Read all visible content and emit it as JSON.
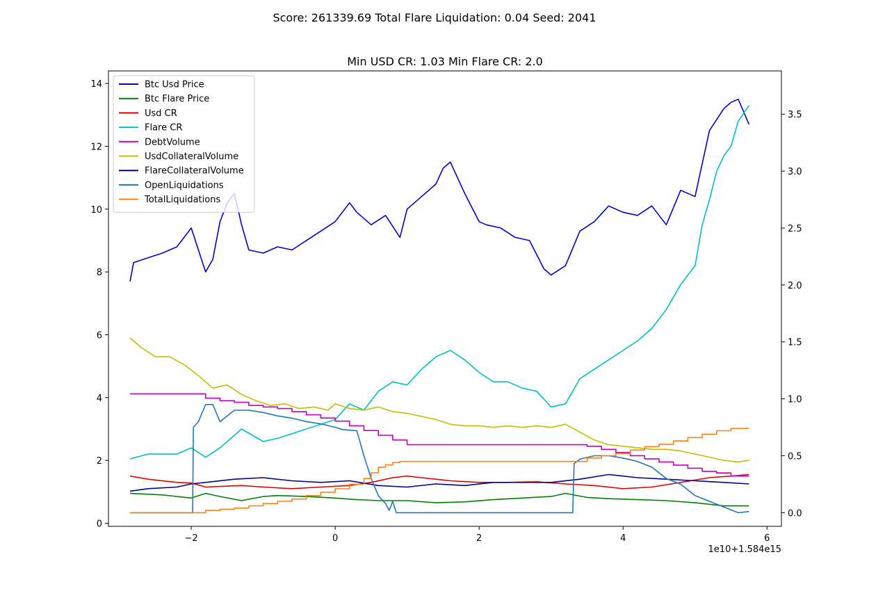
{
  "figure": {
    "suptitle": "Score: 261339.69 Total Flare Liquidation: 0.04 Seed: 2041",
    "title": "Min USD CR: 1.03 Min Flare CR: 2.0",
    "offset_label": "1e10+1.584e15"
  },
  "chart_data": {
    "type": "line",
    "title": "Min USD CR: 1.03 Min Flare CR: 2.0",
    "xlabel": "",
    "ylabel": "",
    "xlim": [
      -3.15,
      6.2
    ],
    "ylim_left": [
      -0.1,
      14.4
    ],
    "ylim_right": [
      -0.12,
      3.88
    ],
    "xticks": [
      -2,
      0,
      2,
      4,
      6
    ],
    "xtick_labels": [
      "−2",
      "0",
      "2",
      "4",
      "6"
    ],
    "yticks_left": [
      0,
      2,
      4,
      6,
      8,
      10,
      12,
      14
    ],
    "ytick_labels_left": [
      "0",
      "2",
      "4",
      "6",
      "8",
      "10",
      "12",
      "14"
    ],
    "yticks_right": [
      0.0,
      0.5,
      1.0,
      1.5,
      2.0,
      2.5,
      3.0,
      3.5
    ],
    "ytick_labels_right": [
      "0.0",
      "0.5",
      "1.0",
      "1.5",
      "2.0",
      "2.5",
      "3.0",
      "3.5"
    ],
    "grid": false,
    "legend_position": "top-left",
    "series": [
      {
        "name": "Btc Usd Price",
        "color": "#0000cd",
        "axis": "left",
        "style": "line",
        "x": [
          -2.85,
          -2.8,
          -2.6,
          -2.4,
          -2.2,
          -2.0,
          -1.9,
          -1.8,
          -1.7,
          -1.6,
          -1.5,
          -1.4,
          -1.3,
          -1.2,
          -1.0,
          -0.8,
          -0.6,
          -0.4,
          -0.2,
          0.0,
          0.2,
          0.3,
          0.5,
          0.7,
          0.9,
          1.0,
          1.2,
          1.4,
          1.5,
          1.6,
          1.7,
          1.8,
          2.0,
          2.1,
          2.3,
          2.5,
          2.7,
          2.9,
          3.0,
          3.2,
          3.4,
          3.6,
          3.8,
          4.0,
          4.2,
          4.4,
          4.6,
          4.8,
          5.0,
          5.2,
          5.4,
          5.5,
          5.6,
          5.75
        ],
        "y": [
          7.7,
          8.3,
          8.45,
          8.6,
          8.8,
          9.4,
          8.7,
          8.0,
          8.4,
          9.6,
          10.2,
          10.5,
          9.5,
          8.7,
          8.6,
          8.8,
          8.7,
          9.0,
          9.3,
          9.6,
          10.2,
          9.9,
          9.5,
          9.8,
          9.1,
          10.0,
          10.4,
          10.8,
          11.3,
          11.5,
          11.0,
          10.5,
          9.6,
          9.5,
          9.4,
          9.1,
          9.0,
          8.1,
          7.9,
          8.2,
          9.3,
          9.6,
          10.1,
          9.9,
          9.8,
          10.1,
          9.5,
          10.6,
          10.4,
          12.5,
          13.2,
          13.4,
          13.5,
          12.7
        ]
      },
      {
        "name": "Btc Flare Price",
        "color": "#008000",
        "axis": "left",
        "style": "line",
        "x": [
          -2.85,
          -2.4,
          -2.0,
          -1.8,
          -1.6,
          -1.3,
          -1.0,
          -0.8,
          -0.4,
          0.0,
          0.3,
          0.6,
          1.0,
          1.4,
          1.8,
          2.2,
          2.6,
          3.0,
          3.2,
          3.5,
          3.8,
          4.2,
          4.6,
          5.0,
          5.4,
          5.75
        ],
        "y": [
          0.95,
          0.9,
          0.8,
          0.95,
          0.85,
          0.72,
          0.85,
          0.88,
          0.85,
          0.8,
          0.75,
          0.72,
          0.72,
          0.65,
          0.68,
          0.75,
          0.8,
          0.85,
          0.95,
          0.82,
          0.78,
          0.75,
          0.72,
          0.65,
          0.55,
          0.55
        ]
      },
      {
        "name": "Usd CR",
        "color": "#e00000",
        "axis": "left",
        "style": "line",
        "x": [
          -2.85,
          -2.6,
          -2.2,
          -2.0,
          -1.8,
          -1.5,
          -1.3,
          -1.0,
          -0.6,
          -0.2,
          0.2,
          0.5,
          0.8,
          1.0,
          1.2,
          1.6,
          2.0,
          2.4,
          2.8,
          3.2,
          3.6,
          4.0,
          4.4,
          4.8,
          5.2,
          5.5,
          5.75
        ],
        "y": [
          1.5,
          1.4,
          1.3,
          1.28,
          1.15,
          1.18,
          1.2,
          1.15,
          1.1,
          1.15,
          1.2,
          1.3,
          1.45,
          1.5,
          1.45,
          1.35,
          1.3,
          1.3,
          1.32,
          1.25,
          1.2,
          1.1,
          1.15,
          1.3,
          1.45,
          1.5,
          1.55
        ]
      },
      {
        "name": "Flare CR",
        "color": "#00bfbf",
        "axis": "left",
        "style": "line",
        "x": [
          -2.85,
          -2.6,
          -2.2,
          -2.0,
          -1.8,
          -1.6,
          -1.3,
          -1.0,
          -0.8,
          -0.4,
          0.0,
          0.2,
          0.4,
          0.6,
          0.8,
          1.0,
          1.2,
          1.4,
          1.6,
          1.8,
          2.0,
          2.2,
          2.4,
          2.6,
          2.8,
          3.0,
          3.2,
          3.4,
          3.6,
          3.8,
          4.0,
          4.2,
          4.4,
          4.6,
          4.8,
          5.0,
          5.1,
          5.2,
          5.3,
          5.4,
          5.5,
          5.6,
          5.75
        ],
        "y": [
          2.05,
          2.2,
          2.2,
          2.4,
          2.1,
          2.4,
          3.0,
          2.6,
          2.7,
          3.0,
          3.3,
          3.8,
          3.6,
          4.2,
          4.5,
          4.4,
          4.9,
          5.3,
          5.5,
          5.2,
          4.8,
          4.5,
          4.5,
          4.3,
          4.2,
          3.7,
          3.8,
          4.6,
          4.9,
          5.2,
          5.5,
          5.8,
          6.2,
          6.8,
          7.6,
          8.2,
          9.5,
          10.3,
          11.2,
          11.7,
          12.0,
          12.8,
          13.3
        ]
      },
      {
        "name": "DebtVolume",
        "color": "#bf00bf",
        "axis": "left",
        "style": "step",
        "x": [
          -2.85,
          -2.0,
          -1.8,
          -1.6,
          -1.4,
          -1.2,
          -1.0,
          -0.8,
          -0.6,
          -0.4,
          -0.2,
          0.0,
          0.2,
          0.4,
          0.6,
          0.8,
          1.0,
          1.5,
          2.0,
          2.5,
          3.0,
          3.3,
          3.5,
          3.7,
          3.9,
          4.1,
          4.3,
          4.5,
          4.7,
          4.9,
          5.1,
          5.3,
          5.5,
          5.75
        ],
        "y": [
          4.12,
          4.12,
          3.98,
          3.9,
          3.85,
          3.75,
          3.7,
          3.65,
          3.55,
          3.45,
          3.35,
          3.25,
          3.1,
          2.95,
          2.8,
          2.65,
          2.5,
          2.5,
          2.5,
          2.5,
          2.5,
          2.5,
          2.45,
          2.35,
          2.25,
          2.15,
          2.05,
          1.95,
          1.85,
          1.75,
          1.65,
          1.6,
          1.5,
          1.5
        ]
      },
      {
        "name": "UsdCollateralVolume",
        "color": "#bfbf00",
        "axis": "left",
        "style": "line",
        "x": [
          -2.85,
          -2.7,
          -2.5,
          -2.3,
          -2.1,
          -1.9,
          -1.7,
          -1.5,
          -1.3,
          -1.1,
          -0.9,
          -0.7,
          -0.5,
          -0.3,
          -0.1,
          0.0,
          0.2,
          0.4,
          0.6,
          0.8,
          1.0,
          1.2,
          1.4,
          1.6,
          1.8,
          2.0,
          2.2,
          2.4,
          2.6,
          2.8,
          3.0,
          3.2,
          3.4,
          3.6,
          3.8,
          4.0,
          4.2,
          4.4,
          4.6,
          4.8,
          5.0,
          5.2,
          5.4,
          5.6,
          5.75
        ],
        "y": [
          5.9,
          5.6,
          5.3,
          5.3,
          5.05,
          4.7,
          4.3,
          4.4,
          4.1,
          3.9,
          3.75,
          3.8,
          3.65,
          3.7,
          3.6,
          3.8,
          3.65,
          3.6,
          3.7,
          3.55,
          3.5,
          3.4,
          3.3,
          3.15,
          3.1,
          3.1,
          3.05,
          3.1,
          3.05,
          3.1,
          3.05,
          3.15,
          2.9,
          2.65,
          2.5,
          2.45,
          2.4,
          2.35,
          2.35,
          2.3,
          2.2,
          2.1,
          2.0,
          1.95,
          2.0
        ]
      },
      {
        "name": "FlareCollateralVolume",
        "color": "#00008b",
        "axis": "left",
        "style": "line",
        "x": [
          -2.85,
          -2.6,
          -2.2,
          -2.0,
          -1.8,
          -1.4,
          -1.0,
          -0.6,
          -0.2,
          0.2,
          0.6,
          1.0,
          1.4,
          1.8,
          2.2,
          2.6,
          3.0,
          3.4,
          3.8,
          4.2,
          4.6,
          5.0,
          5.4,
          5.75
        ],
        "y": [
          1.02,
          1.1,
          1.15,
          1.25,
          1.3,
          1.4,
          1.45,
          1.35,
          1.3,
          1.35,
          1.2,
          1.15,
          1.25,
          1.2,
          1.3,
          1.3,
          1.3,
          1.4,
          1.55,
          1.45,
          1.4,
          1.35,
          1.3,
          1.25
        ]
      },
      {
        "name": "OpenLiquidations",
        "color": "#1f77b4",
        "axis": "right",
        "style": "line",
        "x": [
          -2.85,
          -1.98,
          -1.97,
          -1.9,
          -1.8,
          -1.7,
          -1.6,
          -1.5,
          -1.4,
          -1.3,
          -1.2,
          -1.0,
          -0.8,
          -0.6,
          -0.4,
          -0.2,
          0.0,
          0.1,
          0.3,
          0.4,
          0.5,
          0.6,
          0.7,
          0.75,
          0.8,
          0.85,
          0.9,
          1.0,
          3.3,
          3.32,
          3.4,
          3.6,
          3.8,
          4.0,
          4.2,
          4.4,
          4.6,
          4.8,
          5.0,
          5.2,
          5.4,
          5.6,
          5.75
        ],
        "y": [
          0.0,
          0.0,
          0.75,
          0.8,
          0.95,
          0.95,
          0.8,
          0.85,
          0.9,
          0.9,
          0.9,
          0.88,
          0.85,
          0.83,
          0.8,
          0.78,
          0.75,
          0.73,
          0.72,
          0.5,
          0.3,
          0.15,
          0.08,
          0.02,
          0.1,
          0.0,
          0.0,
          0.0,
          0.0,
          0.43,
          0.47,
          0.5,
          0.5,
          0.48,
          0.45,
          0.4,
          0.3,
          0.25,
          0.15,
          0.1,
          0.05,
          0.0,
          0.01
        ]
      },
      {
        "name": "TotalLiquidations",
        "color": "#ff7f0e",
        "axis": "right",
        "style": "step",
        "x": [
          -2.85,
          -1.98,
          -1.8,
          -1.6,
          -1.4,
          -1.2,
          -1.0,
          -0.8,
          -0.6,
          -0.4,
          -0.2,
          0.0,
          0.2,
          0.4,
          0.5,
          0.6,
          0.7,
          0.8,
          0.9,
          3.3,
          3.5,
          3.7,
          3.9,
          4.1,
          4.3,
          4.5,
          4.7,
          4.9,
          5.1,
          5.3,
          5.5,
          5.75
        ],
        "y": [
          0.0,
          0.0,
          0.02,
          0.03,
          0.04,
          0.06,
          0.08,
          0.1,
          0.12,
          0.15,
          0.18,
          0.21,
          0.25,
          0.3,
          0.35,
          0.4,
          0.42,
          0.44,
          0.45,
          0.45,
          0.48,
          0.5,
          0.52,
          0.55,
          0.58,
          0.6,
          0.63,
          0.66,
          0.69,
          0.72,
          0.74,
          0.74
        ]
      }
    ]
  }
}
